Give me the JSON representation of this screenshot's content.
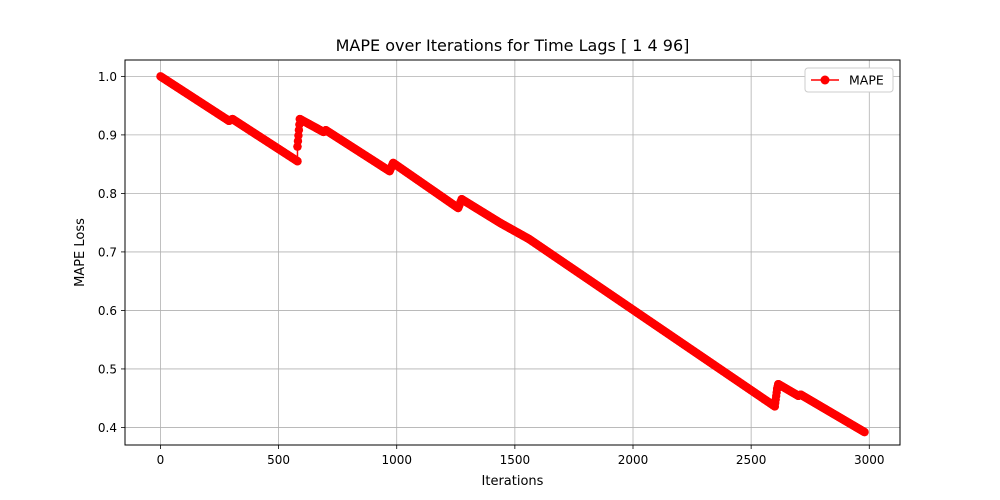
{
  "chart_data": {
    "type": "line",
    "title": "MAPE over Iterations for Time Lags [ 1  4 96]",
    "xlabel": "Iterations",
    "ylabel": "MAPE Loss",
    "xlim": [
      -150,
      3130
    ],
    "ylim": [
      0.37,
      1.028
    ],
    "xticks": [
      "0",
      "500",
      "1000",
      "1500",
      "2000",
      "2500",
      "3000"
    ],
    "yticks": [
      "0.4",
      "0.5",
      "0.6",
      "0.7",
      "0.8",
      "0.9",
      "1.0"
    ],
    "grid": true,
    "legend": {
      "location": "upper right",
      "entries": [
        "MAPE"
      ]
    },
    "marker": "circle",
    "colors": {
      "series": "#ff0000",
      "grid": "#b0b0b0",
      "axes": "#000000"
    },
    "series": [
      {
        "name": "MAPE",
        "segments": [
          {
            "x": [
              0,
              290
            ],
            "y": [
              1.0,
              0.924
            ]
          },
          {
            "x": [
              290,
              305
            ],
            "y": [
              0.924,
              0.927
            ]
          },
          {
            "x": [
              305,
              580
            ],
            "y": [
              0.927,
              0.855
            ]
          },
          {
            "x": [
              580,
              580
            ],
            "y": [
              0.855,
              0.88
            ]
          },
          {
            "x": [
              580,
              590
            ],
            "y": [
              0.88,
              0.927
            ]
          },
          {
            "x": [
              590,
              690
            ],
            "y": [
              0.927,
              0.905
            ]
          },
          {
            "x": [
              690,
              700
            ],
            "y": [
              0.905,
              0.908
            ]
          },
          {
            "x": [
              700,
              970
            ],
            "y": [
              0.908,
              0.838
            ]
          },
          {
            "x": [
              970,
              985
            ],
            "y": [
              0.838,
              0.852
            ]
          },
          {
            "x": [
              985,
              1260
            ],
            "y": [
              0.852,
              0.775
            ]
          },
          {
            "x": [
              1260,
              1275
            ],
            "y": [
              0.775,
              0.79
            ]
          },
          {
            "x": [
              1275,
              1440
            ],
            "y": [
              0.79,
              0.749
            ]
          },
          {
            "x": [
              1440,
              1560
            ],
            "y": [
              0.749,
              0.722
            ]
          },
          {
            "x": [
              1560,
              2600
            ],
            "y": [
              0.722,
              0.436
            ]
          },
          {
            "x": [
              2600,
              2610
            ],
            "y": [
              0.436,
              0.466
            ]
          },
          {
            "x": [
              2610,
              2615
            ],
            "y": [
              0.466,
              0.474
            ]
          },
          {
            "x": [
              2615,
              2700
            ],
            "y": [
              0.474,
              0.454
            ]
          },
          {
            "x": [
              2700,
              2710
            ],
            "y": [
              0.454,
              0.456
            ]
          },
          {
            "x": [
              2710,
              2980
            ],
            "y": [
              0.456,
              0.392
            ]
          }
        ]
      }
    ]
  }
}
